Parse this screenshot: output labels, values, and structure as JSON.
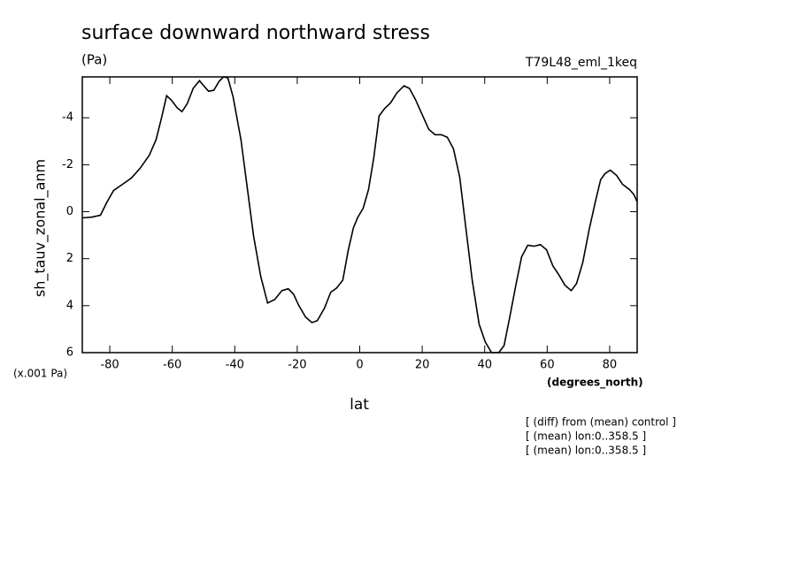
{
  "chart_data": {
    "type": "line",
    "title": "surface downward northward stress",
    "units": "(Pa)",
    "run_label": "T79L48_eml_1keq",
    "y_label": "sh_tauv_zonal_anm",
    "y_scale_label": "(x.001 Pa)",
    "x_units": "(degrees_north)",
    "x_label": "lat",
    "notes": [
      "[ (diff) from (mean) control ]",
      "[ (mean) lon:0..358.5 ]",
      "[ (mean) lon:0..358.5 ]"
    ],
    "color": "#000000",
    "xlim": [
      -88.8,
      88.8
    ],
    "xticks": [
      -80,
      -60,
      -40,
      -20,
      0,
      20,
      40,
      60,
      80
    ],
    "ylim": [
      6,
      -5.74
    ],
    "yticks": [
      -4,
      -2,
      0,
      2,
      4,
      6
    ],
    "x": [
      -88.7,
      -85.8,
      -83,
      -81,
      -78.8,
      -75.9,
      -73.1,
      -70.3,
      -67.4,
      -65.2,
      -63.5,
      -61.8,
      -60.3,
      -58.4,
      -56.9,
      -55.2,
      -53.3,
      -51.3,
      -49.9,
      -48.4,
      -46.7,
      -45,
      -43.6,
      -42.2,
      -40.5,
      -38,
      -36,
      -34,
      -31.7,
      -29.5,
      -27.2,
      -24.9,
      -22.9,
      -21.2,
      -19.5,
      -17.3,
      -15.3,
      -13.6,
      -11.3,
      -9.3,
      -7.4,
      -5.4,
      -3.7,
      -2,
      -0.6,
      1.1,
      2.8,
      4.5,
      6.2,
      7.9,
      9.9,
      11.9,
      14.2,
      15.9,
      17.8,
      19.8,
      22.1,
      24.1,
      26.1,
      28,
      30,
      32,
      34,
      36,
      38.2,
      40.2,
      42.2,
      44.5,
      46.2,
      47.9,
      49.9,
      51.8,
      53.8,
      55.8,
      57.8,
      59.8,
      61.8,
      63.7,
      65.7,
      67.7,
      69.4,
      71.4,
      73.4,
      75.4,
      77.1,
      78.5,
      80.2,
      82.2,
      84.1,
      86.4,
      87.8,
      88.8
    ],
    "values": [
      0.26,
      0.23,
      0.15,
      -0.38,
      -0.9,
      -1.17,
      -1.43,
      -1.85,
      -2.4,
      -3.06,
      -3.96,
      -4.94,
      -4.75,
      -4.42,
      -4.26,
      -4.6,
      -5.25,
      -5.58,
      -5.36,
      -5.13,
      -5.17,
      -5.55,
      -5.74,
      -5.7,
      -4.87,
      -3.06,
      -1.02,
      1.02,
      2.75,
      3.89,
      3.74,
      3.36,
      3.28,
      3.51,
      4.0,
      4.49,
      4.72,
      4.64,
      4.11,
      3.43,
      3.25,
      2.91,
      1.66,
      0.68,
      0.23,
      -0.15,
      -0.94,
      -2.3,
      -4.08,
      -4.38,
      -4.64,
      -5.06,
      -5.36,
      -5.25,
      -4.79,
      -4.19,
      -3.51,
      -3.28,
      -3.28,
      -3.17,
      -2.68,
      -1.47,
      0.72,
      2.91,
      4.79,
      5.55,
      6,
      6,
      5.7,
      4.57,
      3.17,
      1.92,
      1.43,
      1.47,
      1.4,
      1.62,
      2.3,
      2.68,
      3.13,
      3.36,
      3.06,
      2.15,
      0.79,
      -0.42,
      -1.36,
      -1.62,
      -1.77,
      -1.55,
      -1.17,
      -0.94,
      -0.72,
      -0.42
    ]
  }
}
